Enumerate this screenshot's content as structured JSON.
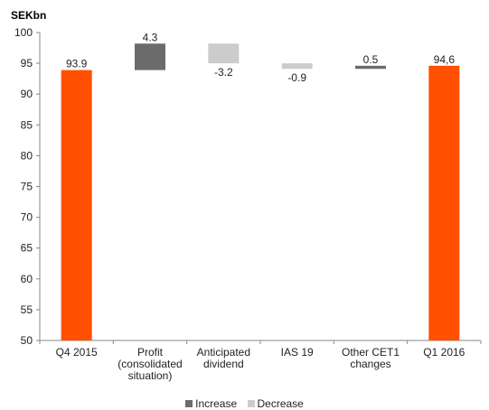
{
  "chart_data": {
    "type": "bar",
    "subtype": "waterfall",
    "unit_label": "SEKbn",
    "ylim": [
      50,
      100
    ],
    "yticks": [
      50,
      55,
      60,
      65,
      70,
      75,
      80,
      85,
      90,
      95,
      100
    ],
    "categories": [
      [
        "Q4 2015"
      ],
      [
        "Profit",
        "(consolidated",
        "situation)"
      ],
      [
        "Anticipated",
        "dividend"
      ],
      [
        "IAS 19"
      ],
      [
        "Other CET1",
        "changes"
      ],
      [
        "Q1 2016"
      ]
    ],
    "bars": [
      {
        "kind": "total",
        "start": 50,
        "end": 93.9,
        "label": "93.9"
      },
      {
        "kind": "increase",
        "start": 93.9,
        "end": 98.2,
        "label": "4.3"
      },
      {
        "kind": "decrease",
        "start": 98.2,
        "end": 95.0,
        "label": "-3.2"
      },
      {
        "kind": "decrease",
        "start": 95.0,
        "end": 94.1,
        "label": "-0.9"
      },
      {
        "kind": "increase",
        "start": 94.1,
        "end": 94.6,
        "label": "0.5"
      },
      {
        "kind": "total",
        "start": 50,
        "end": 94.6,
        "label": "94,6"
      }
    ],
    "legend": [
      {
        "name": "Increase",
        "color": "#6b6b6b"
      },
      {
        "name": "Decrease",
        "color": "#cccccc"
      }
    ],
    "colors": {
      "total": "#ff5000",
      "increase": "#6b6b6b",
      "decrease": "#cccccc"
    },
    "legend_position": "bottom",
    "grid": false
  }
}
